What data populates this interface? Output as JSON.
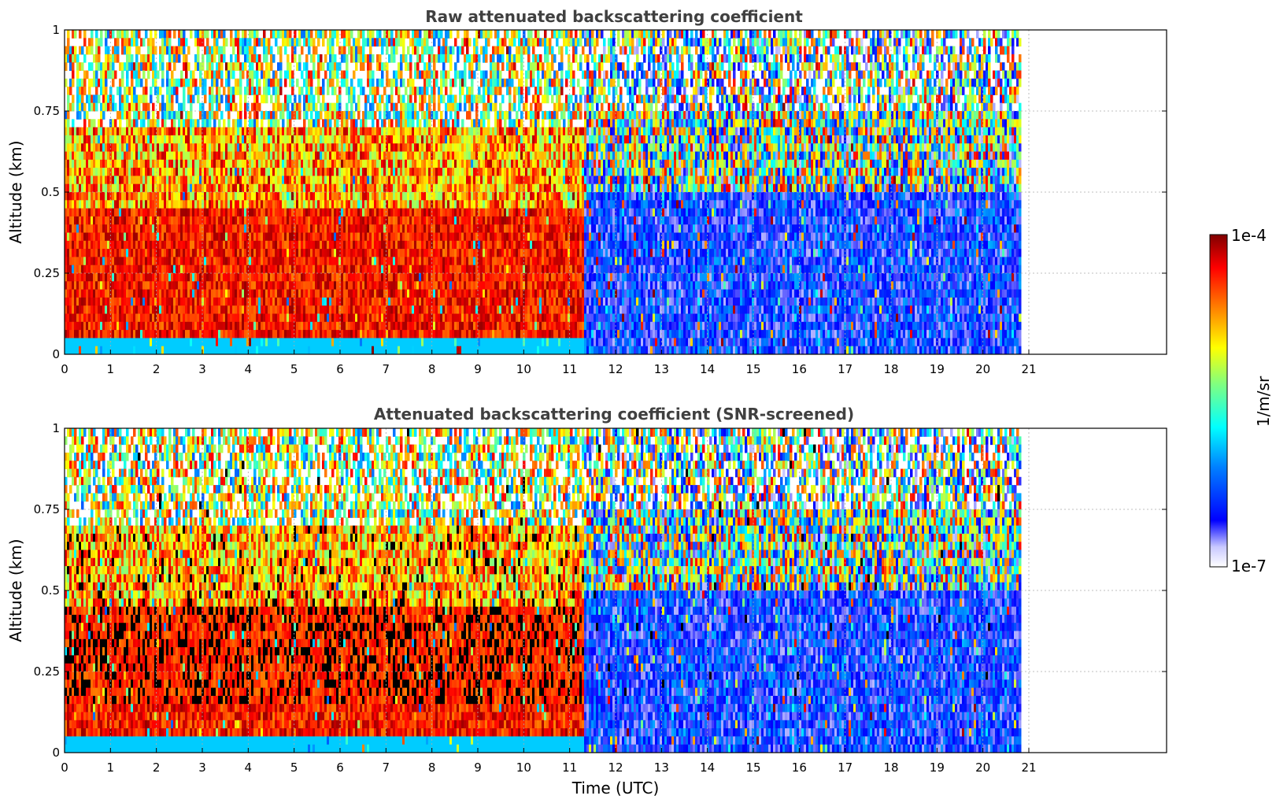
{
  "chart_data": [
    {
      "type": "heatmap",
      "title": "Raw attenuated backscattering coefficient",
      "xlabel": "",
      "ylabel": "Altitude (km)",
      "xlim": [
        0,
        24
      ],
      "ylim": [
        0,
        1
      ],
      "xticks": [
        "0",
        "1",
        "2",
        "3",
        "4",
        "5",
        "6",
        "7",
        "8",
        "9",
        "10",
        "11",
        "12",
        "13",
        "14",
        "15",
        "16",
        "17",
        "18",
        "19",
        "20",
        "21"
      ],
      "yticks": [
        "0",
        "0.25",
        "0.5",
        "0.75",
        "1"
      ],
      "grid": true,
      "data_end_hour": 20.8
    },
    {
      "type": "heatmap",
      "title": "Attenuated backscattering coefficient (SNR-screened)",
      "xlabel": "Time (UTC)",
      "ylabel": "Altitude (km)",
      "xlim": [
        0,
        24
      ],
      "ylim": [
        0,
        1
      ],
      "xticks": [
        "0",
        "1",
        "2",
        "3",
        "4",
        "5",
        "6",
        "7",
        "8",
        "9",
        "10",
        "11",
        "12",
        "13",
        "14",
        "15",
        "16",
        "17",
        "18",
        "19",
        "20",
        "21"
      ],
      "yticks": [
        "0",
        "0.25",
        "0.5",
        "0.75",
        "1"
      ],
      "grid": true,
      "data_end_hour": 20.8
    }
  ],
  "colorbar": {
    "label": "1/m/sr",
    "max_label": "1e-4",
    "min_label": "1e-7",
    "colormap": [
      "#ffffff",
      "#c8c8ff",
      "#0000ff",
      "#0080ff",
      "#00ffff",
      "#80ff80",
      "#ffff00",
      "#ff8000",
      "#ff0000",
      "#800000"
    ]
  }
}
